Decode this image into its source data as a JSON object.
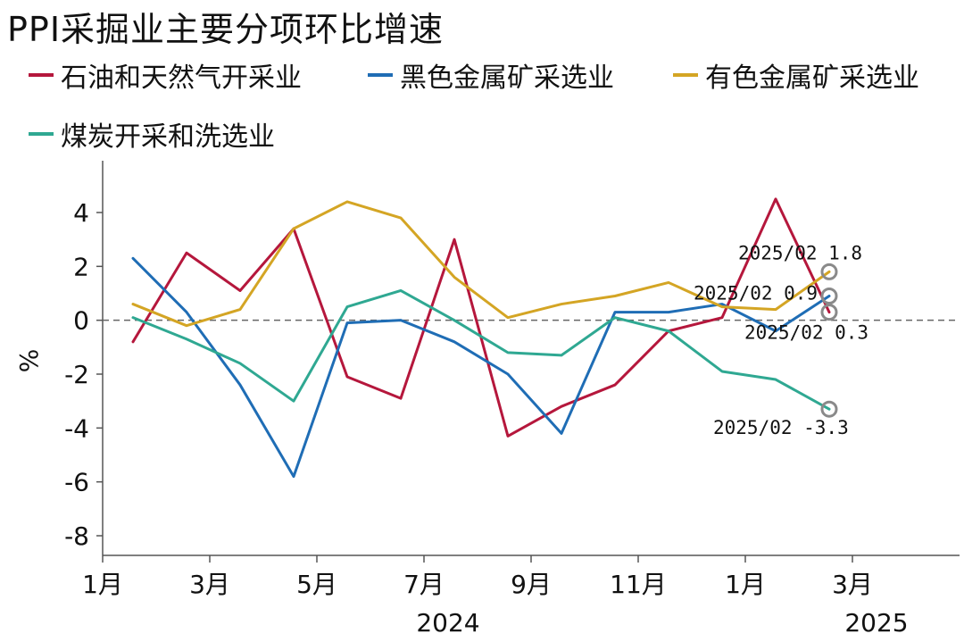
{
  "title": "PPI采掘业主要分项环比增速",
  "chart_data": {
    "type": "line",
    "title": "PPI采掘业主要分项环比增速",
    "ylabel": "%",
    "xlabel": "",
    "ylim": [
      -8,
      5
    ],
    "yticks": [
      4,
      2,
      0,
      -2,
      -4,
      -6,
      -8
    ],
    "xticks": [
      "1月",
      "3月",
      "5月",
      "7月",
      "9月",
      "11月",
      "1月",
      "3月"
    ],
    "year_labels": [
      "2024",
      "2025"
    ],
    "x": [
      "2024/01",
      "2024/02",
      "2024/03",
      "2024/04",
      "2024/05",
      "2024/06",
      "2024/07",
      "2024/08",
      "2024/09",
      "2024/10",
      "2024/11",
      "2024/12",
      "2025/01",
      "2025/02"
    ],
    "zero_line": "dashed",
    "grid": false,
    "legend_position": "top",
    "series": [
      {
        "name": "石油和天然气开采业",
        "color": "#b5173c",
        "values": [
          -0.8,
          2.5,
          1.1,
          3.4,
          -2.1,
          -2.9,
          3.0,
          -4.3,
          -3.2,
          -2.4,
          -0.4,
          0.1,
          4.5,
          0.3
        ]
      },
      {
        "name": "黑色金属矿采选业",
        "color": "#1f6db5",
        "values": [
          2.3,
          0.3,
          -2.4,
          -5.8,
          -0.1,
          0.0,
          -0.8,
          -2.0,
          -4.2,
          0.3,
          0.3,
          0.6,
          -0.4,
          0.9
        ]
      },
      {
        "name": "有色金属矿采选业",
        "color": "#d4a524",
        "values": [
          0.6,
          -0.2,
          0.4,
          3.4,
          4.4,
          3.8,
          1.6,
          0.1,
          0.6,
          0.9,
          1.4,
          0.5,
          0.4,
          1.8
        ]
      },
      {
        "name": "煤炭开采和洗选业",
        "color": "#2fa892",
        "values": [
          0.1,
          -0.7,
          -1.6,
          -3.0,
          0.5,
          1.1,
          0.0,
          -1.2,
          -1.3,
          0.1,
          -0.4,
          -1.9,
          -2.2,
          -3.3
        ]
      }
    ],
    "annotations": [
      {
        "text": "2025/02 1.8",
        "y": 1.8
      },
      {
        "text": "2025/02 0.9",
        "y": 0.9
      },
      {
        "text": "2025/02 0.3",
        "y": 0.3
      },
      {
        "text": "2025/02 -3.3",
        "y": -3.3
      }
    ]
  }
}
